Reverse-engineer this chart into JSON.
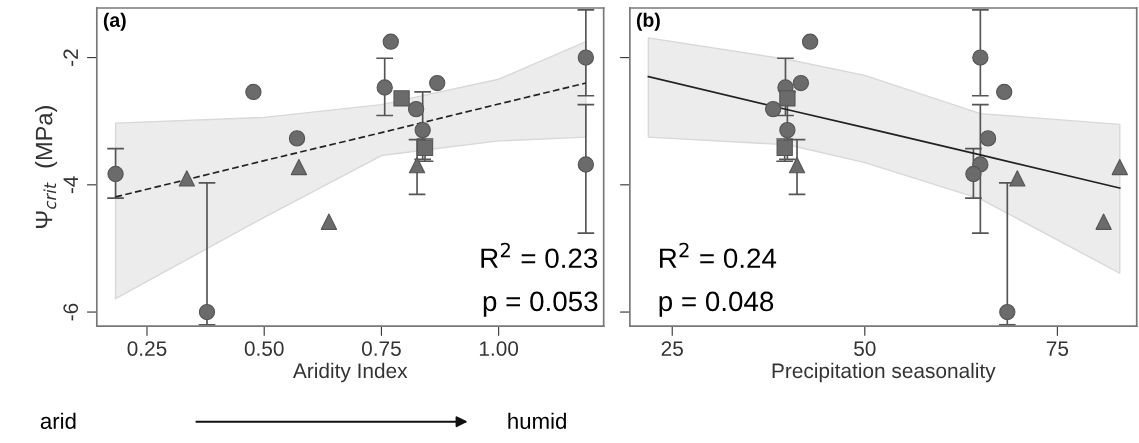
{
  "chart_data": [
    {
      "type": "scatter",
      "xlabel": "Aridity Index",
      "ylabel": "Ψ$_{crit}$  (MPa)",
      "annotations": [
        "(a)",
        "R$^{2}$ = 0.23",
        "p = 0.053",
        "arid",
        "humid"
      ],
      "xlim": [
        0.143,
        1.224
      ],
      "ylim": [
        -6.22,
        -1.22
      ],
      "xticks": [
        {
          "value": 0.25,
          "label": "0.25"
        },
        {
          "value": 0.5,
          "label": "0.50"
        },
        {
          "value": 0.75,
          "label": "0.75"
        },
        {
          "value": 1.0,
          "label": "1.00"
        }
      ],
      "yticks": [
        -2,
        -4,
        -6
      ],
      "grid": false,
      "series": [
        {
          "marker": "circle",
          "color": "#6b6b6b",
          "x": [
            0.183,
            0.378,
            0.477,
            0.57,
            0.757,
            0.77,
            0.824,
            0.838,
            0.869,
            1.186,
            1.186
          ],
          "values": [
            -3.83,
            -6.0,
            -2.54,
            -3.27,
            -2.47,
            -1.75,
            -2.81,
            -3.14,
            -2.4,
            -2.0,
            -3.68
          ],
          "errors": [
            [
              -4.21,
              -3.43
            ],
            [
              -6.2,
              -3.97
            ],
            null,
            null,
            [
              -2.91,
              -2.01
            ],
            null,
            null,
            [
              -3.6,
              -2.54
            ],
            null,
            [
              -2.6,
              -1.25
            ],
            [
              -4.76,
              -2.74
            ]
          ]
        },
        {
          "marker": "square",
          "color": "#6b6b6b",
          "x": [
            0.793,
            0.843
          ],
          "values": [
            -2.64,
            -3.42
          ],
          "errors": [
            null,
            [
              -3.63,
              -3.28
            ]
          ]
        },
        {
          "marker": "triangle",
          "color": "#6b6b6b",
          "x": [
            0.335,
            0.574,
            0.638,
            0.826
          ],
          "values": [
            -3.9,
            -3.72,
            -4.58,
            -3.69
          ],
          "errors": [
            null,
            null,
            null,
            [
              -4.15,
              -3.29
            ]
          ]
        },
        {
          "type": "line",
          "line_style": "dashed",
          "color": "#222222",
          "x": [
            0.183,
            0.5,
            0.75,
            1.0,
            1.186
          ],
          "values": [
            -4.19,
            -3.62,
            -3.18,
            -2.73,
            -2.4
          ],
          "lower": [
            -5.79,
            -4.51,
            -3.54,
            -3.31,
            -3.25
          ],
          "upper": [
            -3.03,
            -2.94,
            -2.74,
            -2.34,
            -1.75
          ]
        }
      ]
    },
    {
      "type": "scatter",
      "xlabel": "Precipitation seasonality",
      "annotations": [
        "(b)",
        "R$^{2}$ = 0.24",
        "p = 0.048"
      ],
      "xlim": [
        19.5,
        85.3
      ],
      "ylim": [
        -6.22,
        -1.22
      ],
      "xticks": [
        25,
        50,
        75
      ],
      "yticks": [
        -2,
        -4,
        -6
      ],
      "tick_labels": "x",
      "grid": false,
      "series": [
        {
          "marker": "circle",
          "color": "#6b6b6b",
          "x": [
            42.9,
            39.7,
            41.7,
            38.1,
            39.95,
            65.0,
            68.1,
            66.0,
            65.0,
            64.1,
            68.5
          ],
          "values": [
            -1.75,
            -2.47,
            -2.4,
            -2.81,
            -3.14,
            -2.0,
            -2.54,
            -3.27,
            -3.68,
            -3.83,
            -6.0
          ],
          "errors": [
            null,
            [
              -2.91,
              -2.01
            ],
            null,
            null,
            [
              -3.6,
              -2.54
            ],
            [
              -2.6,
              -1.25
            ],
            null,
            null,
            [
              -4.76,
              -2.74
            ],
            [
              -4.21,
              -3.43
            ],
            [
              -6.2,
              -3.97
            ]
          ]
        },
        {
          "marker": "square",
          "color": "#6b6b6b",
          "x": [
            39.95,
            39.6
          ],
          "values": [
            -2.64,
            -3.42
          ],
          "errors": [
            null,
            [
              -3.63,
              -3.28
            ]
          ]
        },
        {
          "marker": "triangle",
          "color": "#6b6b6b",
          "x": [
            41.2,
            69.8,
            83.1,
            81.0
          ],
          "values": [
            -3.69,
            -3.9,
            -3.72,
            -4.58
          ],
          "errors": [
            [
              -4.15,
              -3.29
            ],
            null,
            null,
            null
          ]
        },
        {
          "type": "line",
          "line_style": "solid",
          "color": "#222222",
          "x": [
            21.9,
            40,
            50,
            65,
            83.1
          ],
          "values": [
            -2.3,
            -2.82,
            -3.1,
            -3.53,
            -4.05
          ],
          "lower": [
            -3.25,
            -3.37,
            -3.65,
            -4.22,
            -5.39
          ],
          "upper": [
            -1.69,
            -2.03,
            -2.28,
            -2.88,
            -3.05
          ]
        }
      ]
    }
  ]
}
